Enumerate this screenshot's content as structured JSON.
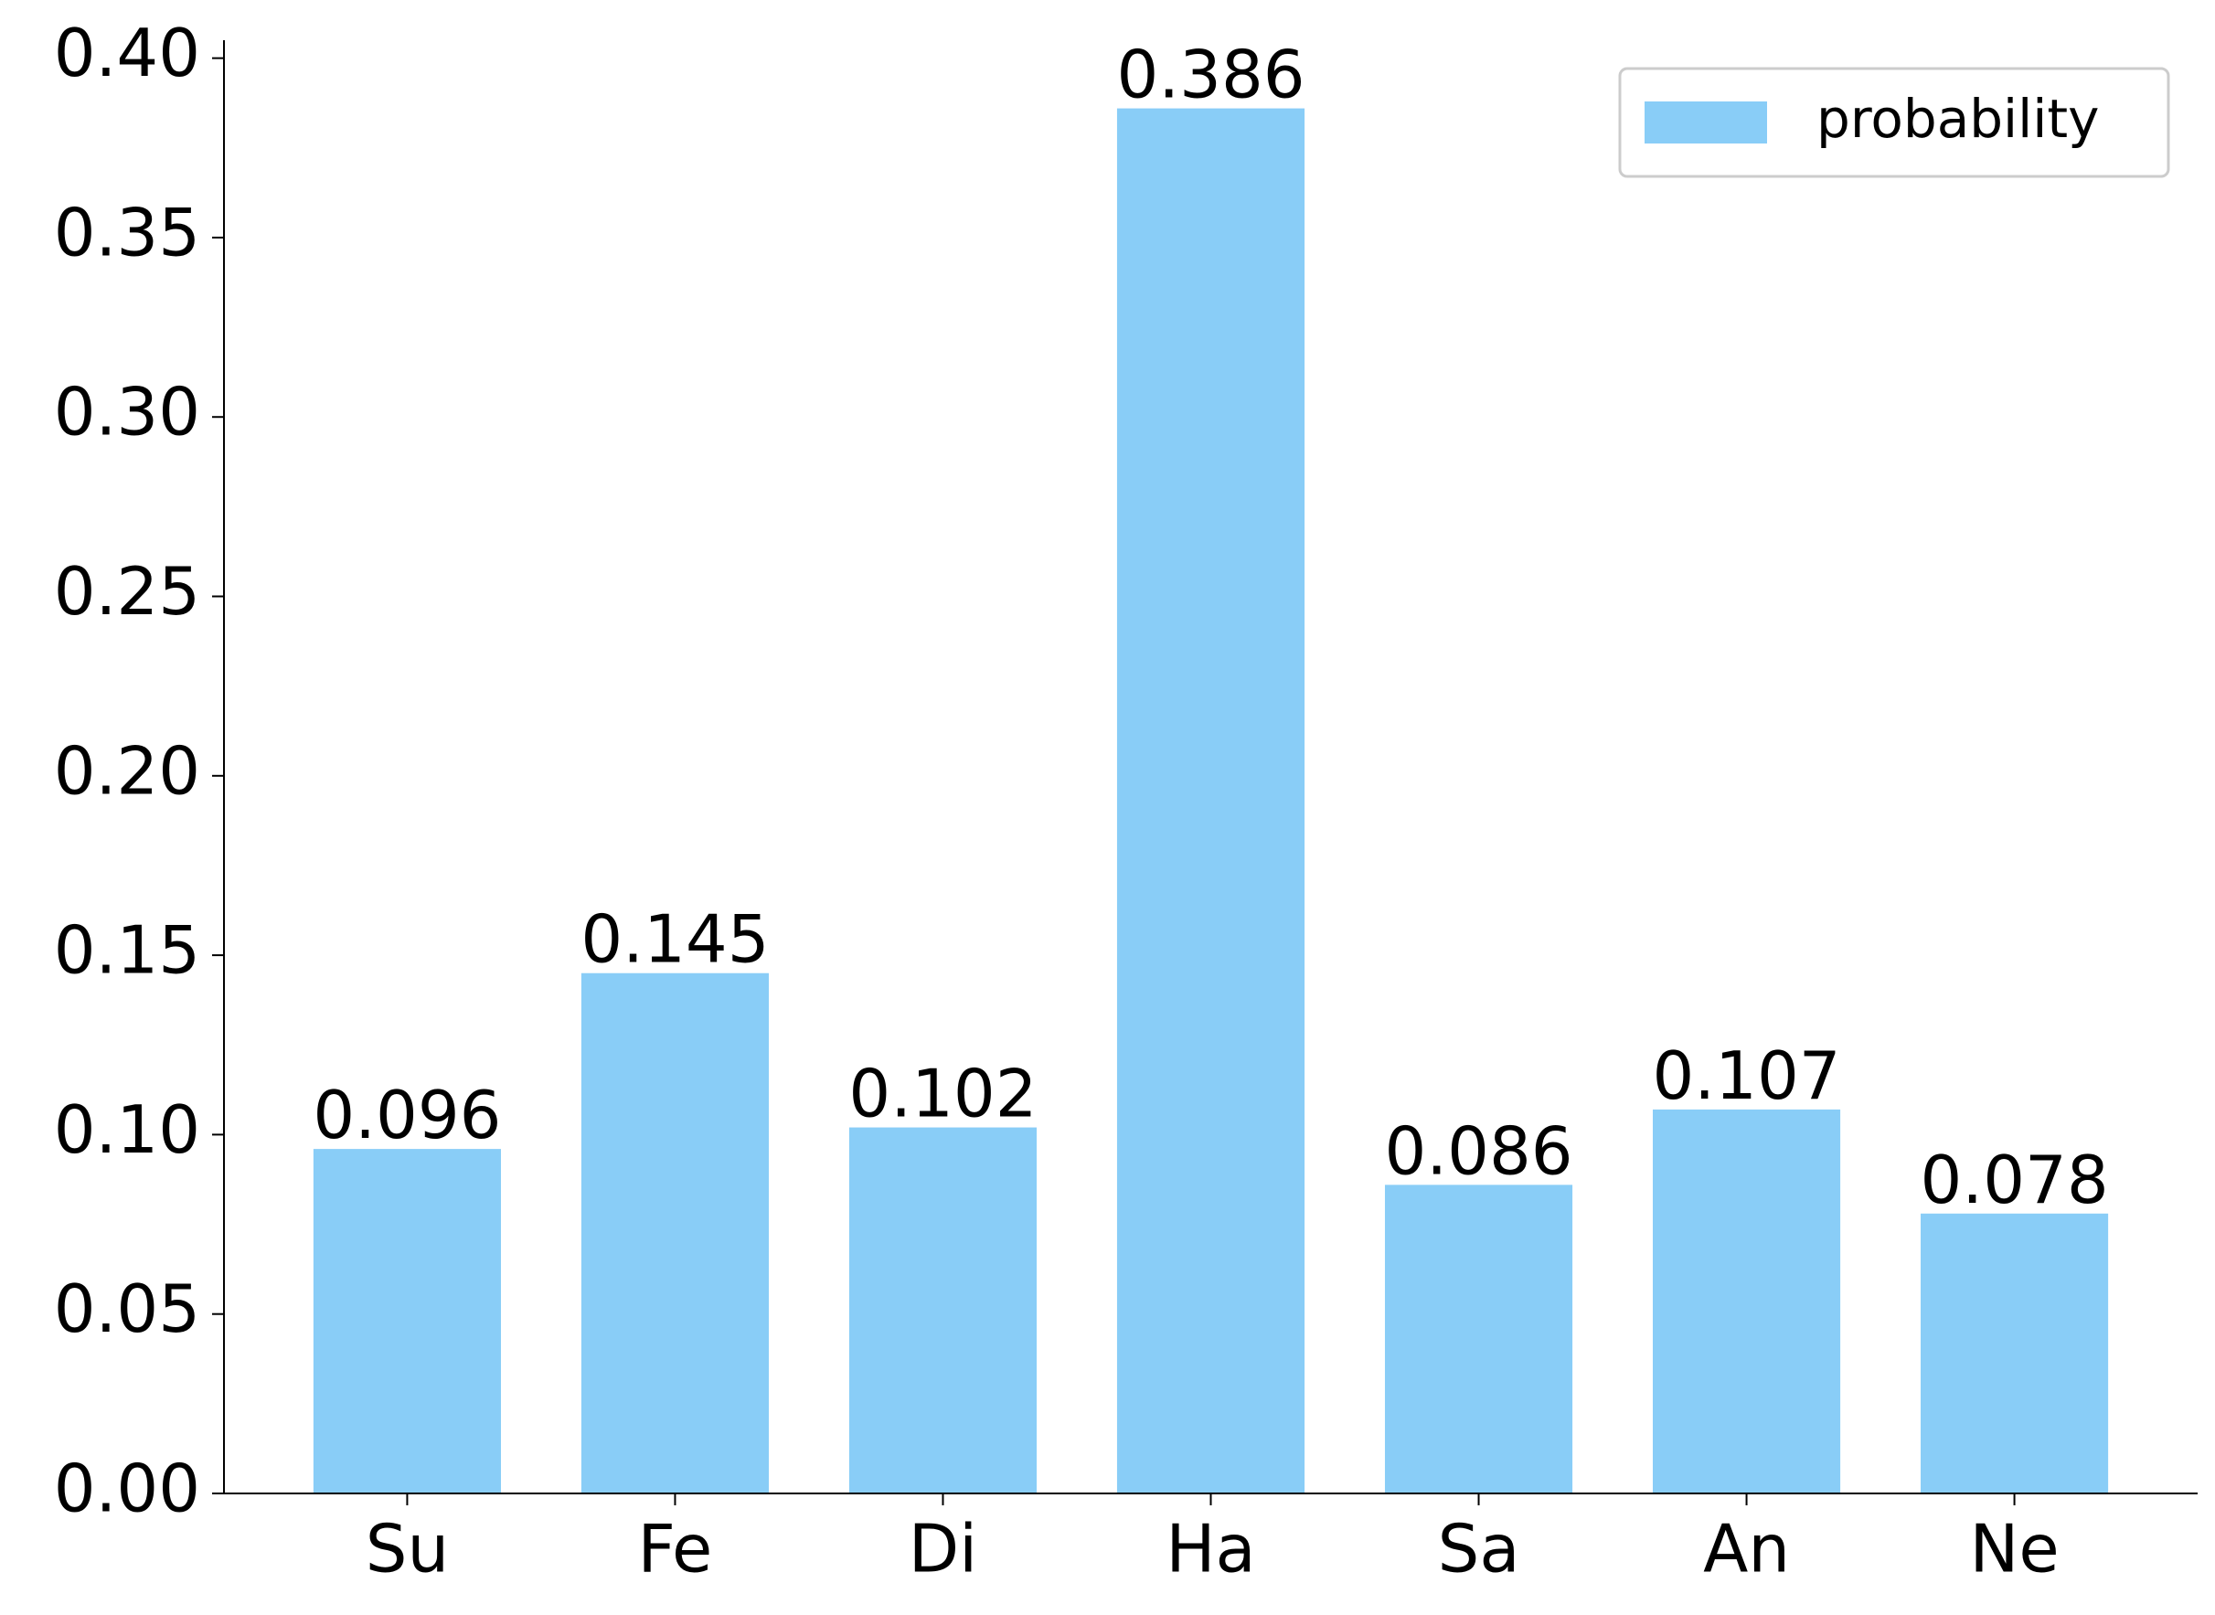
{
  "chart_data": {
    "type": "bar",
    "categories": [
      "Su",
      "Fe",
      "Di",
      "Ha",
      "Sa",
      "An",
      "Ne"
    ],
    "series": [
      {
        "name": "probability",
        "color": "#89cdf7",
        "values": [
          0.096,
          0.145,
          0.102,
          0.386,
          0.086,
          0.107,
          0.078
        ]
      }
    ],
    "ylim": [
      0,
      0.405
    ],
    "yticks": [
      {
        "value": 0,
        "label": "0.00"
      },
      0.05,
      {
        "value": 0.1,
        "label": "0.10"
      },
      0.15,
      {
        "value": 0.2,
        "label": "0.20"
      },
      0.25,
      {
        "value": 0.3,
        "label": "0.30"
      },
      0.35,
      {
        "value": 0.4,
        "label": "0.40"
      }
    ],
    "legend": "upper right"
  }
}
